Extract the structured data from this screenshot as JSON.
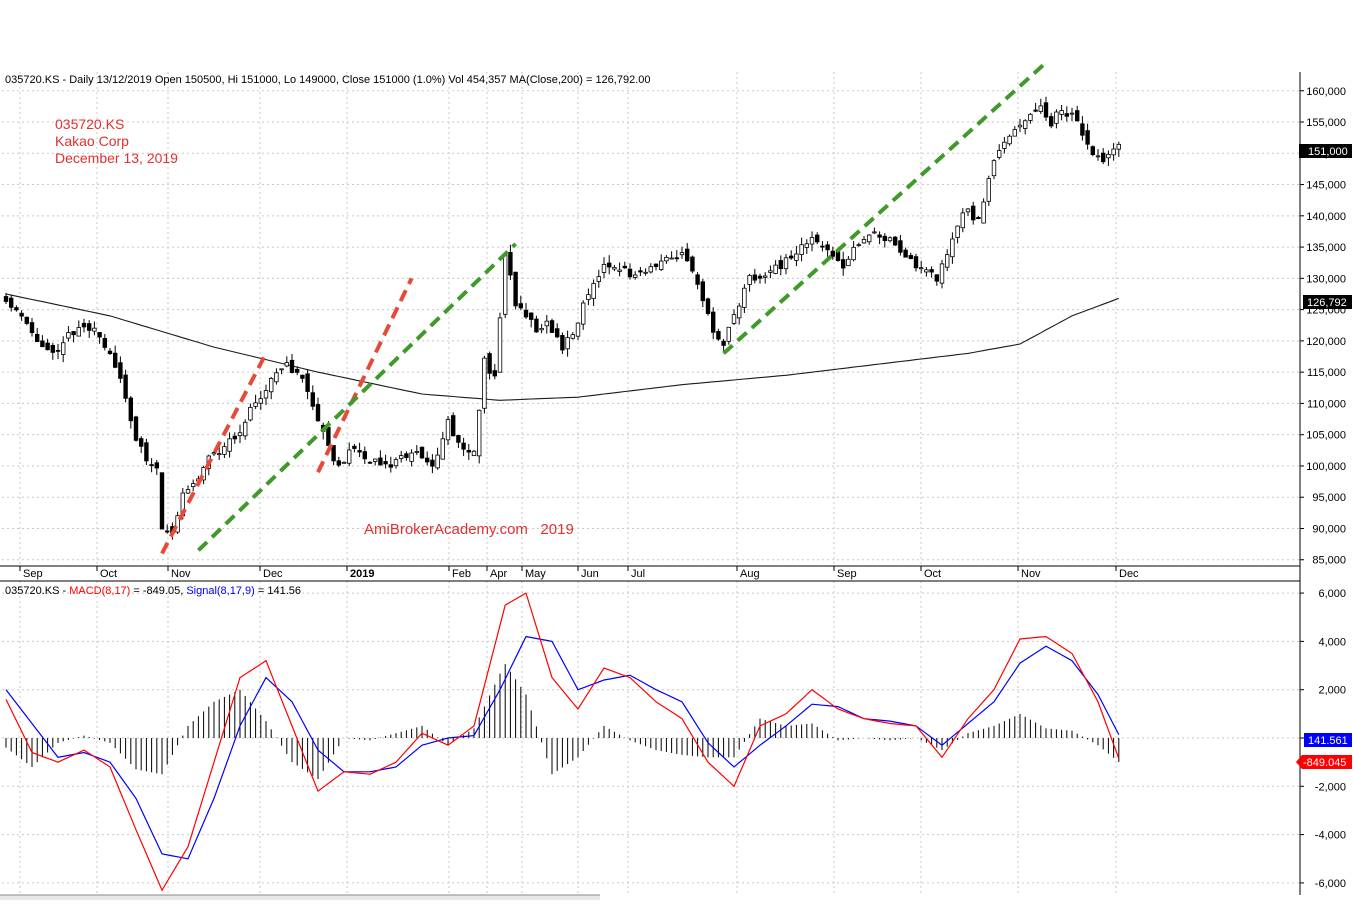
{
  "colors": {
    "grid": "#c8c8c8",
    "candle": "#000000",
    "ma": "#1a1a1a",
    "annotation_red": "#e03030",
    "watermark": "#e03030",
    "trend_red": "#e84a3a",
    "trend_green": "#3f9a2a",
    "macd": "#ff0000",
    "signal": "#0000ff",
    "hist": "#000000",
    "price_tag_bg": "#000000",
    "signal_tag_bg": "#0000ff",
    "macd_tag_bg": "#ff0000"
  },
  "header": {
    "price_info": "035720.KS - Daily 13/12/2019 Open 150500, Hi 151000, Lo 149000, Close 151000 (1.0%) Vol 454,357 MA(Close,200) = 126,792.00",
    "macd_prefix": "035720.KS - ",
    "macd_name": "MACD(8,17)",
    "macd_value": " = -849.05, ",
    "signal_name": "Signal(8,17,9)",
    "signal_value": " = 141.56"
  },
  "annotation": {
    "ticker": "035720.KS",
    "company": "Kakao Corp",
    "date": "December 13, 2019"
  },
  "watermark": "AmiBrokerAcademy.com   2019",
  "tags": {
    "close": "151,000",
    "ma": "126,792",
    "signal": "141.561",
    "macd": "-849.045"
  },
  "chart_data": [
    {
      "type": "candlestick",
      "ticker": "035720.KS",
      "overlay": "MA(Close,200)",
      "log_scale": false,
      "grid": true,
      "ylim": [
        84000,
        163000
      ],
      "y_ticks": [
        85000,
        90000,
        95000,
        100000,
        105000,
        110000,
        115000,
        120000,
        125000,
        130000,
        135000,
        140000,
        145000,
        150000,
        155000,
        160000
      ],
      "y_tick_labels": [
        "85,000",
        "90,000",
        "95,000",
        "100,000",
        "105,000",
        "110,000",
        "115,000",
        "120,000",
        "125,000",
        "130,000",
        "135,000",
        "140,000",
        "145,000",
        "150,000",
        "155,000",
        "160,000"
      ],
      "x_labels": [
        "Sep",
        "Oct",
        "Nov",
        "Dec",
        "2019",
        "Feb",
        "Apr",
        "May",
        "Jun",
        "Jul",
        "Aug",
        "Sep",
        "Oct",
        "Nov",
        "Dec"
      ],
      "close_path": [
        [
          0,
          127000
        ],
        [
          2,
          125000
        ],
        [
          5,
          121000
        ],
        [
          9,
          118000
        ],
        [
          12,
          121000
        ],
        [
          15,
          122000
        ],
        [
          18,
          121000
        ],
        [
          20,
          118000
        ],
        [
          23,
          111000
        ],
        [
          25,
          104000
        ],
        [
          27,
          101000
        ],
        [
          29,
          100000
        ],
        [
          30,
          90000
        ],
        [
          32,
          89000
        ],
        [
          34,
          96000
        ],
        [
          36,
          97000
        ],
        [
          39,
          101000
        ],
        [
          42,
          103000
        ],
        [
          45,
          106000
        ],
        [
          48,
          110000
        ],
        [
          51,
          114000
        ],
        [
          54,
          116000
        ],
        [
          57,
          114000
        ],
        [
          59,
          109000
        ],
        [
          62,
          103000
        ],
        [
          64,
          100000
        ],
        [
          67,
          103000
        ],
        [
          70,
          101000
        ],
        [
          73,
          100000
        ],
        [
          76,
          101000
        ],
        [
          79,
          102000
        ],
        [
          82,
          100000
        ],
        [
          85,
          107000
        ],
        [
          87,
          104000
        ],
        [
          89,
          102000
        ],
        [
          90,
          102000
        ],
        [
          92,
          117000
        ],
        [
          94,
          114000
        ],
        [
          96,
          134000
        ],
        [
          98,
          126000
        ],
        [
          100,
          124000
        ],
        [
          102,
          122000
        ],
        [
          104,
          123000
        ],
        [
          107,
          119000
        ],
        [
          110,
          123000
        ],
        [
          112,
          128000
        ],
        [
          115,
          132000
        ],
        [
          118,
          132000
        ],
        [
          121,
          130000
        ],
        [
          124,
          132000
        ],
        [
          127,
          133000
        ],
        [
          130,
          134000
        ],
        [
          132,
          131000
        ],
        [
          134,
          126000
        ],
        [
          136,
          122000
        ],
        [
          138,
          119000
        ],
        [
          140,
          124000
        ],
        [
          143,
          130000
        ],
        [
          146,
          131000
        ],
        [
          149,
          132000
        ],
        [
          152,
          134000
        ],
        [
          155,
          137000
        ],
        [
          158,
          134000
        ],
        [
          161,
          132000
        ],
        [
          164,
          136000
        ],
        [
          167,
          137000
        ],
        [
          170,
          136000
        ],
        [
          173,
          133000
        ],
        [
          176,
          132000
        ],
        [
          179,
          130000
        ],
        [
          181,
          134000
        ],
        [
          183,
          139000
        ],
        [
          185,
          141000
        ],
        [
          187,
          139000
        ],
        [
          189,
          146000
        ],
        [
          191,
          151000
        ],
        [
          193,
          153000
        ],
        [
          195,
          154000
        ],
        [
          197,
          156000
        ],
        [
          199,
          157000
        ],
        [
          201,
          155000
        ],
        [
          203,
          157000
        ],
        [
          205,
          156000
        ],
        [
          207,
          153000
        ],
        [
          209,
          150000
        ],
        [
          211,
          149000
        ],
        [
          213,
          150000
        ],
        [
          214,
          151000
        ]
      ],
      "ma_path": [
        [
          0,
          127500
        ],
        [
          20,
          124000
        ],
        [
          40,
          119000
        ],
        [
          60,
          115000
        ],
        [
          80,
          111500
        ],
        [
          95,
          110500
        ],
        [
          110,
          111000
        ],
        [
          130,
          113000
        ],
        [
          150,
          114500
        ],
        [
          170,
          116500
        ],
        [
          185,
          118000
        ],
        [
          195,
          119500
        ],
        [
          205,
          124000
        ],
        [
          214,
          126800
        ]
      ],
      "trendlines": [
        {
          "color": "red",
          "from": [
            30,
            86000
          ],
          "to": [
            50,
            118000
          ]
        },
        {
          "color": "red",
          "from": [
            60,
            99000
          ],
          "to": [
            78,
            130000
          ]
        },
        {
          "color": "green",
          "from": [
            37,
            86500
          ],
          "to": [
            98,
            135500
          ]
        },
        {
          "color": "green",
          "from": [
            138,
            118000
          ],
          "to": [
            200,
            164500
          ]
        }
      ]
    },
    {
      "type": "line",
      "indicator": "MACD(8,17), Signal(8,17,9)",
      "grid": true,
      "ylim": [
        -6500,
        6500
      ],
      "y_ticks": [
        -6000,
        -4000,
        -2000,
        0,
        2000,
        4000,
        6000
      ],
      "y_tick_labels": [
        "-6,000",
        "-4,000",
        "-2,000",
        "",
        "2,000",
        "4,000",
        "6,000"
      ],
      "series": [
        {
          "name": "MACD(8,17)",
          "points": [
            [
              0,
              1600
            ],
            [
              5,
              -600
            ],
            [
              10,
              -1000
            ],
            [
              15,
              -500
            ],
            [
              20,
              -1200
            ],
            [
              25,
              -3800
            ],
            [
              30,
              -6300
            ],
            [
              35,
              -4500
            ],
            [
              40,
              -1000
            ],
            [
              45,
              2500
            ],
            [
              50,
              3200
            ],
            [
              55,
              500
            ],
            [
              60,
              -2200
            ],
            [
              65,
              -1400
            ],
            [
              70,
              -1500
            ],
            [
              75,
              -1000
            ],
            [
              80,
              200
            ],
            [
              85,
              -300
            ],
            [
              90,
              500
            ],
            [
              96,
              5500
            ],
            [
              100,
              6000
            ],
            [
              105,
              2500
            ],
            [
              110,
              1200
            ],
            [
              115,
              2900
            ],
            [
              120,
              2500
            ],
            [
              125,
              1500
            ],
            [
              130,
              800
            ],
            [
              135,
              -1000
            ],
            [
              140,
              -2000
            ],
            [
              145,
              500
            ],
            [
              150,
              1000
            ],
            [
              155,
              2000
            ],
            [
              160,
              1200
            ],
            [
              165,
              800
            ],
            [
              170,
              600
            ],
            [
              175,
              500
            ],
            [
              180,
              -800
            ],
            [
              185,
              800
            ],
            [
              190,
              2000
            ],
            [
              195,
              4100
            ],
            [
              200,
              4200
            ],
            [
              205,
              3500
            ],
            [
              210,
              1500
            ],
            [
              214,
              -849
            ]
          ]
        },
        {
          "name": "Signal(8,17,9)",
          "points": [
            [
              0,
              2000
            ],
            [
              5,
              600
            ],
            [
              10,
              -800
            ],
            [
              15,
              -600
            ],
            [
              20,
              -1000
            ],
            [
              25,
              -2500
            ],
            [
              30,
              -4800
            ],
            [
              35,
              -5000
            ],
            [
              40,
              -2500
            ],
            [
              45,
              500
            ],
            [
              50,
              2500
            ],
            [
              55,
              1500
            ],
            [
              60,
              -500
            ],
            [
              65,
              -1400
            ],
            [
              70,
              -1400
            ],
            [
              75,
              -1200
            ],
            [
              80,
              -300
            ],
            [
              85,
              0
            ],
            [
              90,
              100
            ],
            [
              95,
              2000
            ],
            [
              100,
              4200
            ],
            [
              105,
              4000
            ],
            [
              110,
              2000
            ],
            [
              115,
              2400
            ],
            [
              120,
              2600
            ],
            [
              125,
              2000
            ],
            [
              130,
              1500
            ],
            [
              135,
              -200
            ],
            [
              140,
              -1200
            ],
            [
              145,
              -300
            ],
            [
              150,
              500
            ],
            [
              155,
              1400
            ],
            [
              160,
              1300
            ],
            [
              165,
              800
            ],
            [
              170,
              700
            ],
            [
              175,
              500
            ],
            [
              180,
              -300
            ],
            [
              185,
              600
            ],
            [
              190,
              1500
            ],
            [
              195,
              3100
            ],
            [
              200,
              3800
            ],
            [
              205,
              3200
            ],
            [
              210,
              1800
            ],
            [
              214,
              142
            ]
          ]
        }
      ],
      "histogram_label": "MACD - Signal"
    }
  ]
}
